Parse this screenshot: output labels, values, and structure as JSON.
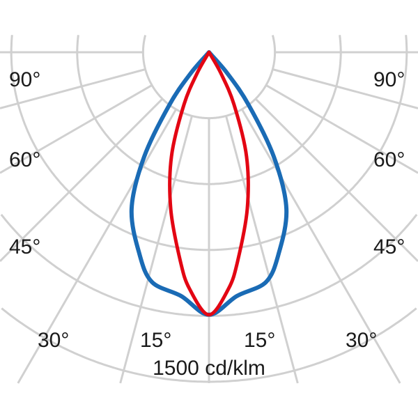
{
  "chart_data": {
    "type": "polar",
    "title": "",
    "scale_label": "1500 cd/klm",
    "radial_max": 1500,
    "radial_rings": [
      300,
      600,
      900,
      1200,
      1500
    ],
    "angle_labels": {
      "left": [
        "90°",
        "60°",
        "45°",
        "30°",
        "15°"
      ],
      "right": [
        "15°",
        "30°",
        "45°",
        "60°",
        "90°"
      ]
    },
    "grid": true,
    "series": [
      {
        "color": "#1a6bb5",
        "angles": [
          0,
          6.5,
          13.9,
          19,
          26.3,
          31.8,
          37,
          41,
          45
        ],
        "values": [
          1195,
          1117,
          1078,
          972,
          795,
          560,
          299,
          126,
          0
        ]
      },
      {
        "color": "#e30613",
        "angles": [
          0,
          4.7,
          7.8,
          13.7,
          19.8,
          25.6,
          29.5,
          32
        ],
        "values": [
          1195,
          1081,
          960,
          735,
          505,
          263,
          108,
          0
        ]
      }
    ]
  }
}
